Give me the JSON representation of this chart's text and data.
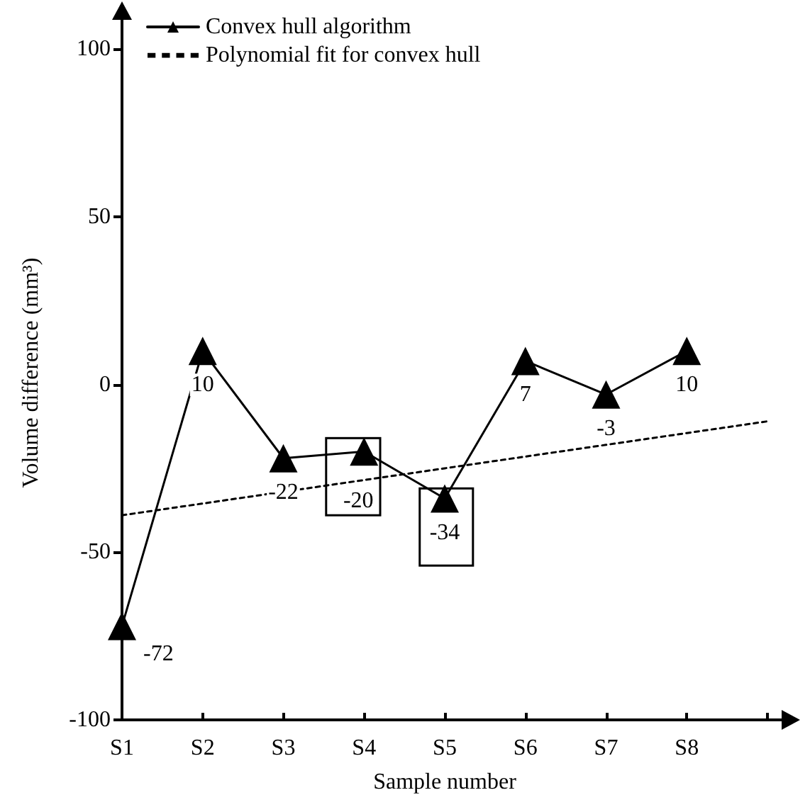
{
  "chart_data": {
    "type": "line",
    "xlabel": "Sample number",
    "ylabel": "Volume difference (mm³)",
    "categories": [
      "S1",
      "S2",
      "S3",
      "S4",
      "S5",
      "S6",
      "S7",
      "S8",
      null
    ],
    "ylim": [
      -100,
      107
    ],
    "yticks": [
      -100,
      -50,
      0,
      50,
      100
    ],
    "series": [
      {
        "name": "Convex hull algorithm",
        "color": "#000000",
        "values": [
          -72,
          10,
          -22,
          -20,
          -34,
          7,
          -3,
          10,
          null
        ],
        "value_labels": [
          "-72",
          "10",
          "-22",
          "-20",
          "-34",
          "7",
          "-3",
          "10",
          null
        ],
        "marker": "triangle",
        "line_style": "solid"
      },
      {
        "name": "Polynomial fit for convex hull",
        "color": "#000000",
        "values": [
          -39,
          -35.5,
          -32,
          -28.5,
          -25,
          -21.5,
          -18,
          -14.5,
          -11
        ],
        "marker": "none",
        "line_style": "dotted"
      }
    ],
    "legend": "top left",
    "grid": false
  }
}
